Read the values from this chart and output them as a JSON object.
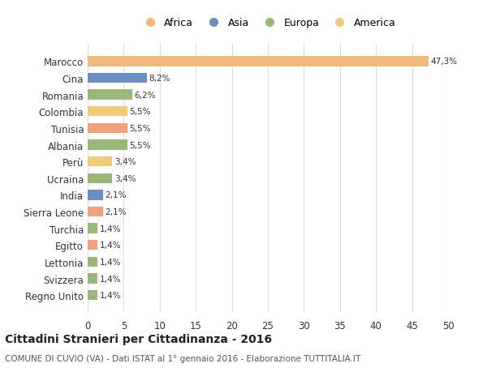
{
  "categories": [
    "Marocco",
    "Cina",
    "Romania",
    "Colombia",
    "Tunisia",
    "Albania",
    "Perù",
    "Ucraina",
    "India",
    "Sierra Leone",
    "Turchia",
    "Egitto",
    "Lettonia",
    "Svizzera",
    "Regno Unito"
  ],
  "values": [
    47.3,
    8.2,
    6.2,
    5.5,
    5.5,
    5.5,
    3.4,
    3.4,
    2.1,
    2.1,
    1.4,
    1.4,
    1.4,
    1.4,
    1.4
  ],
  "labels": [
    "47,3%",
    "8,2%",
    "6,2%",
    "5,5%",
    "5,5%",
    "5,5%",
    "3,4%",
    "3,4%",
    "2,1%",
    "2,1%",
    "1,4%",
    "1,4%",
    "1,4%",
    "1,4%",
    "1,4%"
  ],
  "colors": [
    "#f0b97a",
    "#6b8fc2",
    "#9ab87a",
    "#f0cc7a",
    "#f0a07a",
    "#9ab87a",
    "#f0cc7a",
    "#9ab87a",
    "#6b8fc2",
    "#f0a07a",
    "#9ab87a",
    "#f0a07a",
    "#9ab87a",
    "#9ab87a",
    "#9ab87a"
  ],
  "legend_labels": [
    "Africa",
    "Asia",
    "Europa",
    "America"
  ],
  "legend_colors": [
    "#f0b97a",
    "#6b8fc2",
    "#9ab87a",
    "#f0cc7a"
  ],
  "title": "Cittadini Stranieri per Cittadinanza - 2016",
  "subtitle": "COMUNE DI CUVIO (VA) - Dati ISTAT al 1° gennaio 2016 - Elaborazione TUTTITALIA.IT",
  "xlim": [
    0,
    50
  ],
  "xticks": [
    0,
    5,
    10,
    15,
    20,
    25,
    30,
    35,
    40,
    45,
    50
  ],
  "background_color": "#ffffff",
  "grid_color": "#dddddd"
}
